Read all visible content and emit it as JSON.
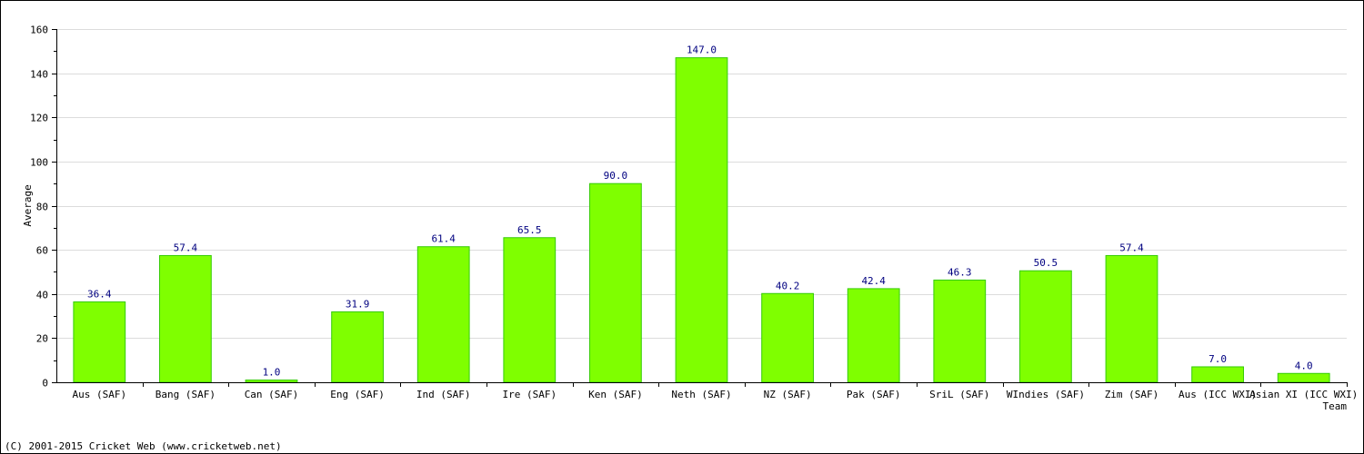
{
  "chart_data": {
    "type": "bar",
    "categories": [
      "Aus (SAF)",
      "Bang (SAF)",
      "Can (SAF)",
      "Eng (SAF)",
      "Ind (SAF)",
      "Ire (SAF)",
      "Ken (SAF)",
      "Neth (SAF)",
      "NZ (SAF)",
      "Pak (SAF)",
      "SriL (SAF)",
      "WIndies (SAF)",
      "Zim (SAF)",
      "Aus (ICC WXI)",
      "Asian XI (ICC WXI)"
    ],
    "values": [
      36.4,
      57.4,
      1.0,
      31.9,
      61.4,
      65.5,
      90.0,
      147.0,
      40.2,
      42.4,
      46.3,
      50.5,
      57.4,
      7.0,
      4.0
    ],
    "value_labels": [
      "36.4",
      "57.4",
      "1.0",
      "31.9",
      "61.4",
      "65.5",
      "90.0",
      "147.0",
      "40.2",
      "42.4",
      "46.3",
      "50.5",
      "57.4",
      "7.0",
      "4.0"
    ],
    "xlabel": "Team",
    "ylabel": "Average",
    "ylim": [
      0,
      160
    ],
    "yticks": [
      0,
      20,
      40,
      60,
      80,
      100,
      120,
      140,
      160
    ],
    "grid": true,
    "bar_color": "#7FFF00",
    "bar_edge_color": "#33CC00",
    "value_label_color": "#000080"
  },
  "footer": {
    "copyright": "(C) 2001-2015 Cricket Web (www.cricketweb.net)"
  }
}
